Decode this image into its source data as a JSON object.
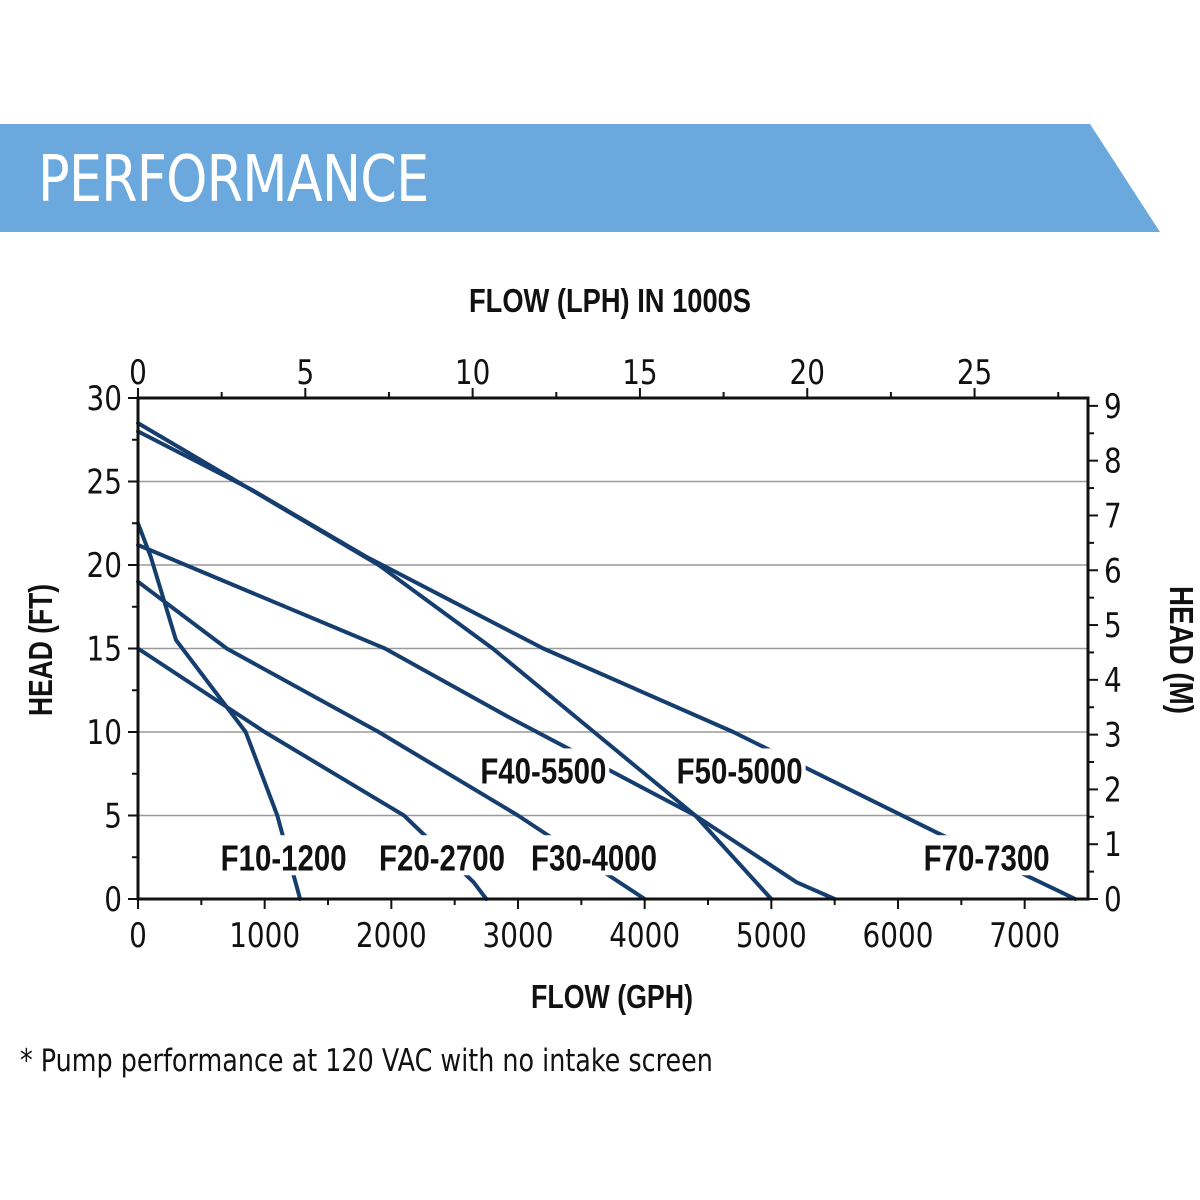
{
  "banner": {
    "title": "PERFORMANCE",
    "color": "#6aa8de"
  },
  "footnote": "* Pump performance at 120 VAC with no intake screen",
  "chart_data": {
    "type": "line",
    "title": "",
    "xlabel": "FLOW (GPH)",
    "ylabel": "HEAD (FT)",
    "x2label": "FLOW (LPH) IN 1000S",
    "y2label": "HEAD (M)",
    "xlim": [
      0,
      7500
    ],
    "ylim": [
      0,
      30
    ],
    "x2lim": [
      0,
      28.39
    ],
    "y2lim": [
      0,
      9.144
    ],
    "xticks": [
      0,
      1000,
      2000,
      3000,
      4000,
      5000,
      6000,
      7000
    ],
    "yticks": [
      0,
      5,
      10,
      15,
      20,
      25,
      30
    ],
    "x2ticks": [
      0,
      5,
      10,
      15,
      20,
      25
    ],
    "y2ticks": [
      0,
      1,
      2,
      3,
      4,
      5,
      6,
      7,
      8,
      9
    ],
    "grid": "horizontal",
    "line_color": "#153e6e",
    "series": [
      {
        "name": "F10-1200",
        "x": [
          0,
          100,
          300,
          850,
          1100,
          1280
        ],
        "y": [
          22.5,
          20.5,
          15.5,
          10,
          5,
          0
        ],
        "label_anchor": [
          1150,
          2.5
        ]
      },
      {
        "name": "F20-2700",
        "x": [
          0,
          1000,
          2100,
          2650,
          2750
        ],
        "y": [
          15,
          10,
          5,
          1,
          0
        ],
        "label_anchor": [
          2400,
          2.5
        ]
      },
      {
        "name": "F30-4000",
        "x": [
          0,
          700,
          1900,
          3000,
          3700,
          4000
        ],
        "y": [
          19,
          15,
          10,
          5,
          1.5,
          0
        ],
        "label_anchor": [
          3600,
          2.5
        ]
      },
      {
        "name": "F40-5500",
        "x": [
          0,
          1950,
          2900,
          4400,
          5200,
          5500
        ],
        "y": [
          21.2,
          15,
          11,
          5,
          1,
          0
        ],
        "label_anchor": [
          3200,
          7.7
        ]
      },
      {
        "name": "F50-5000",
        "x": [
          0,
          1900,
          2800,
          3600,
          4400,
          5000
        ],
        "y": [
          28.5,
          20,
          15,
          10,
          5,
          0
        ],
        "label_anchor": [
          4750,
          7.7
        ]
      },
      {
        "name": "F70-7300",
        "x": [
          0,
          900,
          1800,
          3200,
          4700,
          6300,
          7400
        ],
        "y": [
          28,
          24.5,
          20.5,
          15,
          10,
          4,
          0
        ],
        "label_anchor": [
          6700,
          2.5
        ]
      }
    ]
  }
}
